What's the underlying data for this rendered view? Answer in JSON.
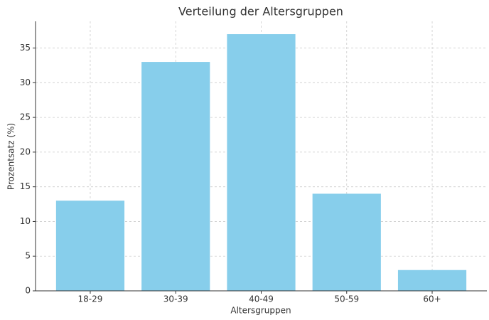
{
  "chart_data": {
    "type": "bar",
    "title": "Verteilung der Altersgruppen",
    "x_label": "Altersgruppen",
    "y_label": "Prozentsatz (%)",
    "categories": [
      "18-29",
      "30-39",
      "40-49",
      "50-59",
      "60+"
    ],
    "values": [
      13,
      33,
      37,
      14,
      3
    ],
    "color": "#87ceeb",
    "ylim": [
      0,
      38.85
    ],
    "yticks": [
      0,
      5,
      10,
      15,
      20,
      25,
      30,
      35
    ],
    "grid": true
  }
}
